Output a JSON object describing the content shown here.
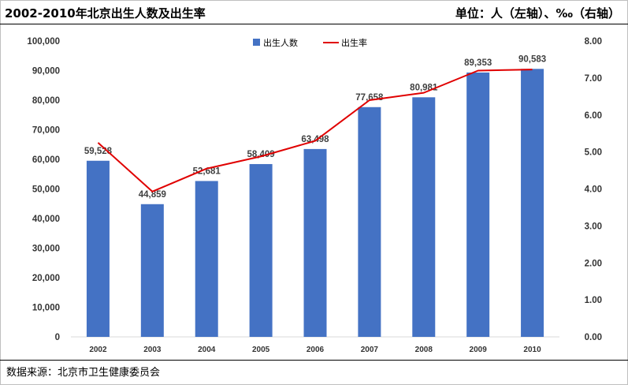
{
  "header": {
    "title": "2002-2010年北京出生人数及出生率",
    "unit": "单位：人（左轴）、‰（右轴）"
  },
  "footer": {
    "source": "数据来源：北京市卫生健康委员会"
  },
  "colors": {
    "bar": "#4472C4",
    "line": "#E00000"
  },
  "chart_data": {
    "type": "bar",
    "title": "2002-2010年北京出生人数及出生率",
    "categories": [
      "2002",
      "2003",
      "2004",
      "2005",
      "2006",
      "2007",
      "2008",
      "2009",
      "2010"
    ],
    "series": [
      {
        "name": "出生人数",
        "kind": "bar",
        "axis": "left",
        "values": [
          59528,
          44859,
          52681,
          58409,
          63498,
          77658,
          80981,
          89353,
          90583
        ],
        "labels": [
          "59,528",
          "44,859",
          "52,681",
          "58,409",
          "63,498",
          "77,658",
          "80,981",
          "89,353",
          "90,583"
        ]
      },
      {
        "name": "出生率",
        "kind": "line",
        "axis": "right",
        "values": [
          5.25,
          3.93,
          4.55,
          4.88,
          5.3,
          6.4,
          6.6,
          7.2,
          7.23
        ]
      }
    ],
    "y_left": {
      "range": [
        0,
        100000
      ],
      "ticks": [
        0,
        10000,
        20000,
        30000,
        40000,
        50000,
        60000,
        70000,
        80000,
        90000,
        100000
      ],
      "tick_labels": [
        "0",
        "10,000",
        "20,000",
        "30,000",
        "40,000",
        "50,000",
        "60,000",
        "70,000",
        "80,000",
        "90,000",
        "100,000"
      ]
    },
    "y_right": {
      "range": [
        0,
        8
      ],
      "ticks": [
        0,
        1,
        2,
        3,
        4,
        5,
        6,
        7,
        8
      ],
      "tick_labels": [
        "0.00",
        "1.00",
        "2.00",
        "3.00",
        "4.00",
        "5.00",
        "6.00",
        "7.00",
        "8.00"
      ]
    },
    "legend": {
      "position": "top-center",
      "items": [
        "出生人数",
        "出生率"
      ]
    },
    "grid": false
  }
}
